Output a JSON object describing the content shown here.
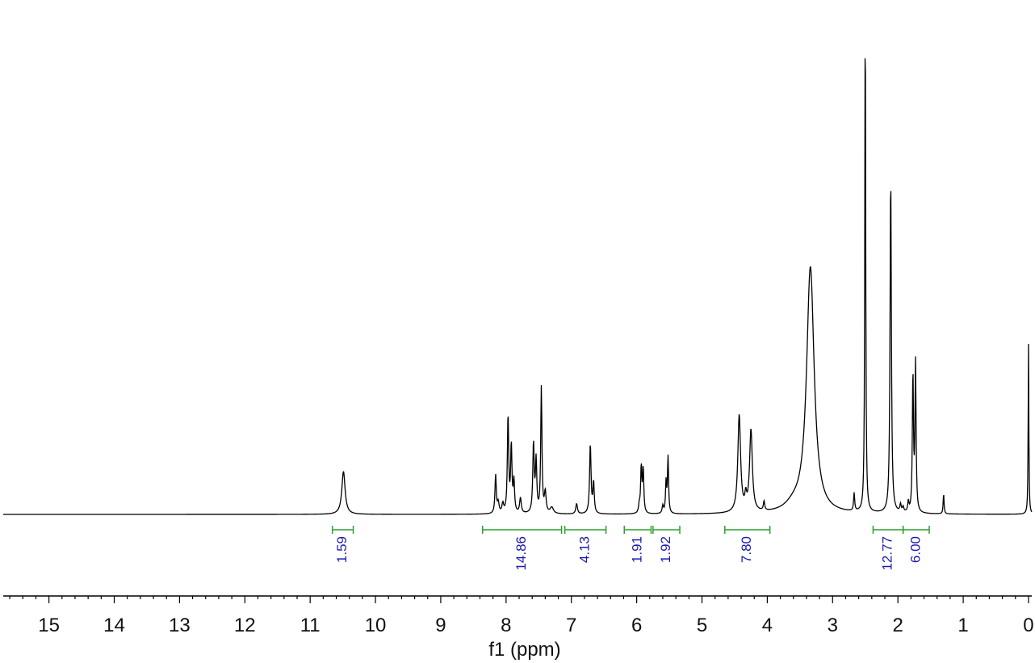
{
  "chart_data": {
    "type": "line",
    "xlabel": "f1 (ppm)",
    "xlim": [
      15.7,
      -0.05
    ],
    "x_reversed": true,
    "x_ticks": [
      "15",
      "14",
      "13",
      "12",
      "11",
      "10",
      "9",
      "8",
      "7",
      "6",
      "5",
      "4",
      "3",
      "2",
      "1",
      "0"
    ],
    "x_tick_values": [
      15,
      14,
      13,
      12,
      11,
      10,
      9,
      8,
      7,
      6,
      5,
      4,
      3,
      2,
      1,
      0
    ],
    "grid": false,
    "series": [
      {
        "peaks": [
          {
            "ppm": 10.49,
            "height": 0.084,
            "width": 0.03
          },
          {
            "ppm": 8.16,
            "height": 0.075,
            "width": 0.012
          },
          {
            "ppm": 8.12,
            "height": 0.02,
            "width": 0.015
          },
          {
            "ppm": 8.05,
            "height": 0.018,
            "width": 0.015
          },
          {
            "ppm": 7.97,
            "height": 0.19,
            "width": 0.012
          },
          {
            "ppm": 7.92,
            "height": 0.13,
            "width": 0.012
          },
          {
            "ppm": 7.88,
            "height": 0.06,
            "width": 0.012
          },
          {
            "ppm": 7.78,
            "height": 0.03,
            "width": 0.015
          },
          {
            "ppm": 7.58,
            "height": 0.135,
            "width": 0.013
          },
          {
            "ppm": 7.54,
            "height": 0.1,
            "width": 0.012
          },
          {
            "ppm": 7.46,
            "height": 0.245,
            "width": 0.011
          },
          {
            "ppm": 7.4,
            "height": 0.04,
            "width": 0.015
          },
          {
            "ppm": 7.3,
            "height": 0.012,
            "width": 0.03
          },
          {
            "ppm": 6.92,
            "height": 0.02,
            "width": 0.015
          },
          {
            "ppm": 6.71,
            "height": 0.135,
            "width": 0.013
          },
          {
            "ppm": 6.66,
            "height": 0.06,
            "width": 0.012
          },
          {
            "ppm": 5.96,
            "height": 0.015,
            "width": 0.012
          },
          {
            "ppm": 5.93,
            "height": 0.09,
            "width": 0.011
          },
          {
            "ppm": 5.9,
            "height": 0.085,
            "width": 0.011
          },
          {
            "ppm": 5.6,
            "height": 0.015,
            "width": 0.012
          },
          {
            "ppm": 5.55,
            "height": 0.06,
            "width": 0.01
          },
          {
            "ppm": 5.52,
            "height": 0.11,
            "width": 0.01
          },
          {
            "ppm": 4.43,
            "height": 0.19,
            "width": 0.025
          },
          {
            "ppm": 4.33,
            "height": 0.025,
            "width": 0.015
          },
          {
            "ppm": 4.25,
            "height": 0.16,
            "width": 0.025
          },
          {
            "ppm": 4.05,
            "height": 0.018,
            "width": 0.012
          },
          {
            "ppm": 3.6,
            "height": 0.012,
            "width": 0.15
          },
          {
            "ppm": 3.34,
            "height": 0.48,
            "width": 0.07
          },
          {
            "ppm": 2.67,
            "height": 0.035,
            "width": 0.01
          },
          {
            "ppm": 2.5,
            "height": 1.0,
            "width": 0.008
          },
          {
            "ppm": 2.11,
            "height": 0.66,
            "width": 0.012
          },
          {
            "ppm": 1.96,
            "height": 0.015,
            "width": 0.012
          },
          {
            "ppm": 1.92,
            "height": 0.01,
            "width": 0.012
          },
          {
            "ppm": 1.84,
            "height": 0.02,
            "width": 0.01
          },
          {
            "ppm": 1.77,
            "height": 0.27,
            "width": 0.01
          },
          {
            "ppm": 1.73,
            "height": 0.29,
            "width": 0.01
          },
          {
            "ppm": 1.3,
            "height": 0.04,
            "width": 0.008
          },
          {
            "ppm": 0.0,
            "height": 0.335,
            "width": 0.006
          }
        ]
      }
    ],
    "integrals": [
      {
        "label": "1.59",
        "from": 10.66,
        "to": 10.34
      },
      {
        "label": "14.86",
        "from": 8.36,
        "to": 7.15
      },
      {
        "label": "4.13",
        "from": 7.1,
        "to": 6.47
      },
      {
        "label": "1.91",
        "from": 6.19,
        "to": 5.78
      },
      {
        "label": "1.92",
        "from": 5.75,
        "to": 5.34
      },
      {
        "label": "7.80",
        "from": 4.65,
        "to": 3.96
      },
      {
        "label": "12.77",
        "from": 2.38,
        "to": 1.92
      },
      {
        "label": "6.00",
        "from": 1.92,
        "to": 1.52
      }
    ],
    "colors": {
      "spectrum": "#000000",
      "integral_bracket": "#2ca02c",
      "integral_text": "#1a1ab0",
      "axis": "#000000"
    }
  }
}
